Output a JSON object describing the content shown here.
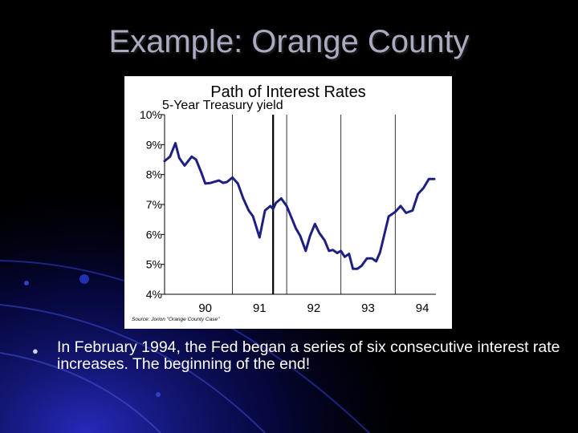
{
  "slide": {
    "title": "Example: Orange County",
    "bullet_icon": "filled-circle-bullet",
    "bullet_text": "In February 1994, the Fed began a series of six consecutive interest rate increases.  The beginning of the end!"
  },
  "chart_data": {
    "type": "line",
    "title": "Path of Interest Rates",
    "subtitle": "5-Year Treasury yield",
    "source_note": "Source: Jorion \"Orange County Case\"",
    "xlabel": "",
    "ylabel": "",
    "x_tick_labels": [
      "90",
      "91",
      "92",
      "93",
      "94"
    ],
    "y_tick_labels": [
      "10%",
      "9%",
      "8%",
      "7%",
      "6%",
      "5%",
      "4%"
    ],
    "ylim": [
      4,
      10
    ],
    "xlim": [
      1989.75,
      1994.75
    ],
    "year_dividers": [
      1991,
      1992,
      1993,
      1994
    ],
    "highlight_divider": 1991.75,
    "line_color": "#1d2080",
    "series": [
      {
        "x": [
          1989.75,
          1989.85,
          1989.95,
          1990.02,
          1990.12,
          1990.25,
          1990.33,
          1990.42,
          1990.5,
          1990.6,
          1990.75,
          1990.83,
          1990.9,
          1991.0,
          1991.1,
          1991.2,
          1991.3,
          1991.38,
          1991.5,
          1991.6,
          1991.7,
          1991.75,
          1991.8,
          1991.9,
          1992.0,
          1992.08,
          1992.17,
          1992.25,
          1992.35,
          1992.43,
          1992.52,
          1992.6,
          1992.7,
          1992.78,
          1992.85,
          1992.93,
          1993.0,
          1993.07,
          1993.15,
          1993.22,
          1993.3,
          1993.38,
          1993.48,
          1993.57,
          1993.65,
          1993.72,
          1993.8,
          1993.88,
          1994.0,
          1994.1,
          1994.2,
          1994.32,
          1994.42,
          1994.52,
          1994.62,
          1994.72
        ],
        "y": [
          8.45,
          8.6,
          9.05,
          8.55,
          8.3,
          8.6,
          8.5,
          8.1,
          7.7,
          7.72,
          7.8,
          7.72,
          7.75,
          7.9,
          7.7,
          7.2,
          6.8,
          6.6,
          5.9,
          6.8,
          6.95,
          6.85,
          7.05,
          7.2,
          6.95,
          6.6,
          6.2,
          5.95,
          5.45,
          5.95,
          6.35,
          6.05,
          5.8,
          5.45,
          5.48,
          5.38,
          5.45,
          5.25,
          5.35,
          4.85,
          4.85,
          4.95,
          5.2,
          5.2,
          5.1,
          5.4,
          6.0,
          6.6,
          6.75,
          6.95,
          6.72,
          6.8,
          7.35,
          7.55,
          7.85,
          7.85
        ]
      }
    ]
  }
}
